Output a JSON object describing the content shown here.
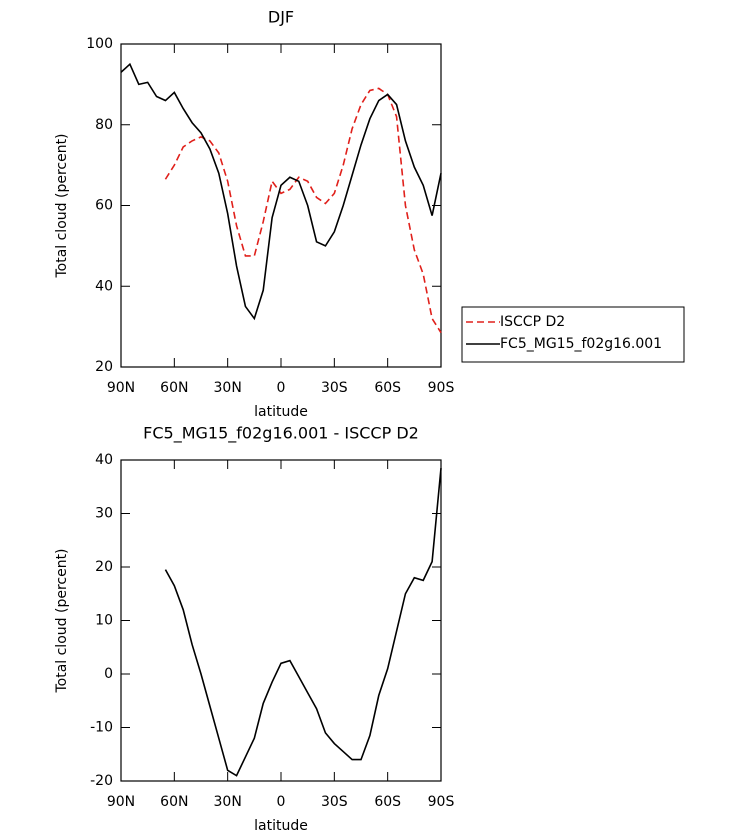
{
  "chart_data": [
    {
      "type": "line",
      "title": "DJF",
      "xlabel": "latitude",
      "ylabel": "Total cloud (percent)",
      "x": [
        90,
        85,
        80,
        75,
        70,
        65,
        60,
        55,
        50,
        45,
        40,
        35,
        30,
        25,
        20,
        15,
        10,
        5,
        0,
        -5,
        -10,
        -15,
        -20,
        -25,
        -30,
        -35,
        -40,
        -45,
        -50,
        -55,
        -60,
        -65,
        -70,
        -75,
        -80,
        -85,
        -90
      ],
      "series": [
        {
          "name": "ISCCP D2",
          "color": "#e0201b",
          "linestyle": "dashed",
          "values": [
            null,
            null,
            null,
            null,
            null,
            66.5,
            70,
            74.5,
            76,
            77,
            76,
            73,
            66,
            55,
            47.5,
            47.5,
            56,
            66,
            63,
            64,
            67,
            66,
            62,
            60.5,
            63,
            70,
            79,
            85,
            88.5,
            89,
            87.5,
            82,
            60,
            49,
            43,
            32,
            28.5
          ]
        },
        {
          "name": "FC5_MG15_f02g16.001",
          "color": "#000000",
          "linestyle": "solid",
          "values": [
            93,
            95,
            90,
            90.5,
            87,
            86,
            88,
            84,
            80.5,
            78,
            74,
            68,
            58,
            45,
            35,
            32,
            39,
            57,
            65,
            67,
            66,
            60,
            51,
            50,
            53.5,
            60,
            67.5,
            75,
            81.5,
            86,
            87.5,
            85,
            76,
            69.5,
            65,
            57.5,
            68
          ]
        }
      ],
      "xlim": [
        90,
        -90
      ],
      "xticks": [
        {
          "value": 90,
          "label": "90N"
        },
        {
          "value": 60,
          "label": "60N"
        },
        {
          "value": 30,
          "label": "30N"
        },
        0,
        {
          "value": -30,
          "label": "30S"
        },
        {
          "value": -60,
          "label": "60S"
        },
        {
          "value": -90,
          "label": "90S"
        }
      ],
      "ylim": [
        20,
        100
      ],
      "yticks": [
        20,
        40,
        60,
        80,
        100
      ],
      "legend": "right"
    },
    {
      "type": "line",
      "title": "FC5_MG15_f02g16.001 - ISCCP D2",
      "xlabel": "latitude",
      "ylabel": "Total cloud (percent)",
      "x": [
        90,
        85,
        80,
        75,
        70,
        65,
        60,
        55,
        50,
        45,
        40,
        35,
        30,
        25,
        20,
        15,
        10,
        5,
        0,
        -5,
        -10,
        -15,
        -20,
        -25,
        -30,
        -35,
        -40,
        -45,
        -50,
        -55,
        -60,
        -65,
        -70,
        -75,
        -80,
        -85,
        -90
      ],
      "series": [
        {
          "color": "#000000",
          "linestyle": "solid",
          "values": [
            null,
            null,
            null,
            null,
            null,
            19.5,
            16.5,
            12,
            5.5,
            0,
            -6,
            -12,
            -18,
            -19,
            -15.5,
            -12,
            -5.5,
            -1.5,
            2,
            2.5,
            -0.5,
            -3.5,
            -6.5,
            -11,
            -13,
            -14.5,
            -16,
            -16,
            -11.5,
            -4,
            1,
            8,
            15,
            18,
            17.5,
            21,
            38.5
          ]
        }
      ],
      "xlim": [
        90,
        -90
      ],
      "xticks": [
        {
          "value": 90,
          "label": "90N"
        },
        {
          "value": 60,
          "label": "60N"
        },
        {
          "value": 30,
          "label": "30N"
        },
        0,
        {
          "value": -30,
          "label": "30S"
        },
        {
          "value": -60,
          "label": "60S"
        },
        {
          "value": -90,
          "label": "90S"
        }
      ],
      "ylim": [
        -20,
        40
      ],
      "yticks": [
        -20,
        -10,
        0,
        10,
        20,
        30,
        40
      ]
    }
  ]
}
